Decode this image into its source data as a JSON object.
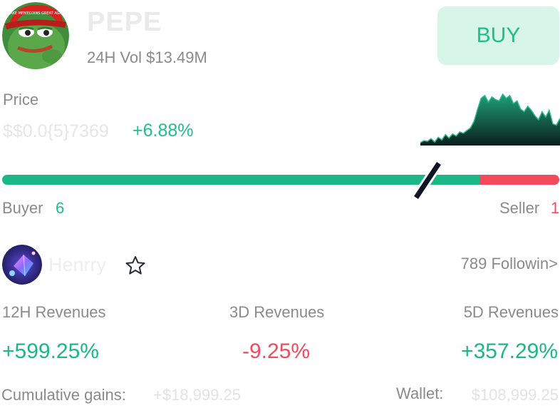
{
  "token": {
    "name": "PEPE",
    "volume": "24H Vol $13.49M",
    "buy_label": "BUY",
    "avatar_icon": "pepe-frog-icon",
    "hat_text": "MAKE MEMECOINS GREAT AGAIN"
  },
  "price": {
    "label": "Price",
    "value": "$$0.0{5}7369",
    "change": "+6.88%"
  },
  "sparkline_data": {
    "type": "area",
    "values": [
      2,
      5,
      4,
      8,
      3,
      10,
      6,
      14,
      9,
      15,
      12,
      18,
      16,
      20,
      24,
      34,
      52,
      68,
      72,
      62,
      70,
      66,
      64,
      74,
      68,
      72,
      60,
      64,
      52,
      48,
      56,
      50,
      42,
      36,
      48,
      40,
      50,
      30,
      28,
      38
    ],
    "colors": {
      "line": "#2bb98a",
      "fill_top": "#1fa077",
      "fill_bottom": "#0b1f1e"
    }
  },
  "ratio": {
    "buyer_label": "Buyer",
    "buyer_count": "6",
    "seller_label": "Seller",
    "seller_count": "1",
    "buyer_fraction": 0.857,
    "buy_color": "#1ab884",
    "sell_color": "#f34a5d"
  },
  "trader": {
    "name": "Henrry",
    "avatar_icon": "crystal-avatar-icon",
    "favorite_icon": "star-outline-icon",
    "following": "789 Followin>"
  },
  "revenues": [
    {
      "label": "12H Revenues",
      "value": "+599.25%"
    },
    {
      "label": "3D Revenues",
      "value": "-9.25%"
    },
    {
      "label": "5D Revenues",
      "value": "+357.29%"
    }
  ],
  "totals": {
    "cumulative_label": "Cumulative gains:",
    "cumulative_value": "+$18,999.25",
    "wallet_label": "Wallet:",
    "wallet_value": "$108,999.25"
  }
}
